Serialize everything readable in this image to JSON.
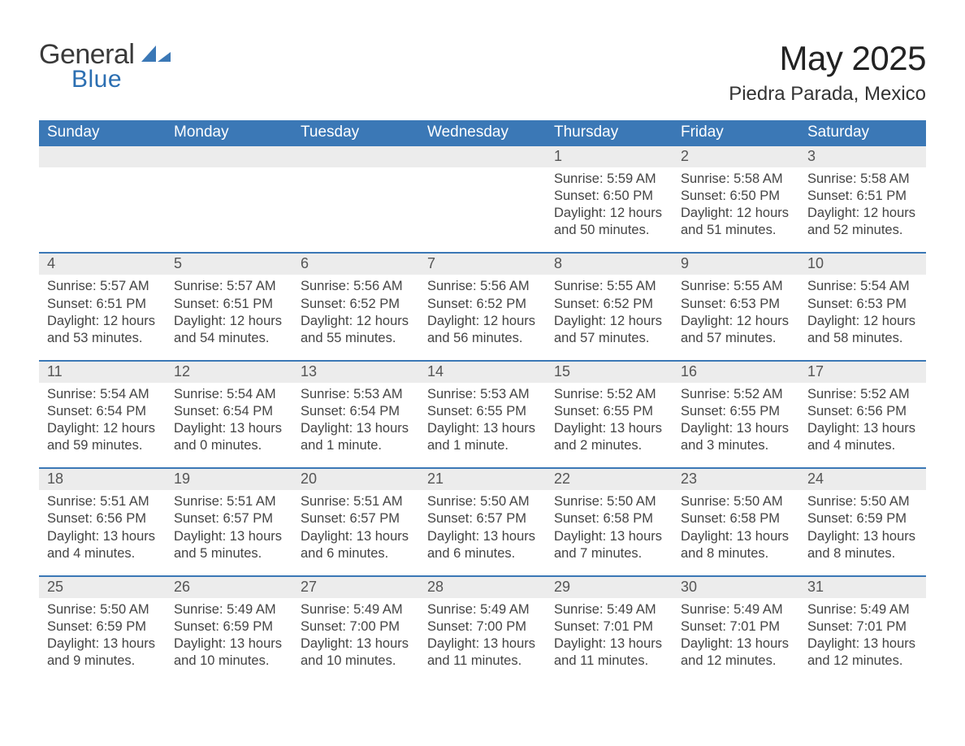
{
  "logo": {
    "word1": "General",
    "word2": "Blue",
    "sail_color": "#3b78b6"
  },
  "title": "May 2025",
  "subtitle": "Piedra Parada, Mexico",
  "colors": {
    "header_bg": "#3b78b6",
    "row_separator": "#3b78b6",
    "daynum_bg": "#ececec",
    "page_bg": "#ffffff",
    "text": "#333333",
    "logo_blue": "#2c6fb2"
  },
  "weekdays": [
    "Sunday",
    "Monday",
    "Tuesday",
    "Wednesday",
    "Thursday",
    "Friday",
    "Saturday"
  ],
  "label_sunrise": "Sunrise: ",
  "label_sunset": "Sunset: ",
  "label_daylight": "Daylight: ",
  "weeks": [
    [
      null,
      null,
      null,
      null,
      {
        "d": "1",
        "sunrise": "5:59 AM",
        "sunset": "6:50 PM",
        "daylight": "12 hours and 50 minutes."
      },
      {
        "d": "2",
        "sunrise": "5:58 AM",
        "sunset": "6:50 PM",
        "daylight": "12 hours and 51 minutes."
      },
      {
        "d": "3",
        "sunrise": "5:58 AM",
        "sunset": "6:51 PM",
        "daylight": "12 hours and 52 minutes."
      }
    ],
    [
      {
        "d": "4",
        "sunrise": "5:57 AM",
        "sunset": "6:51 PM",
        "daylight": "12 hours and 53 minutes."
      },
      {
        "d": "5",
        "sunrise": "5:57 AM",
        "sunset": "6:51 PM",
        "daylight": "12 hours and 54 minutes."
      },
      {
        "d": "6",
        "sunrise": "5:56 AM",
        "sunset": "6:52 PM",
        "daylight": "12 hours and 55 minutes."
      },
      {
        "d": "7",
        "sunrise": "5:56 AM",
        "sunset": "6:52 PM",
        "daylight": "12 hours and 56 minutes."
      },
      {
        "d": "8",
        "sunrise": "5:55 AM",
        "sunset": "6:52 PM",
        "daylight": "12 hours and 57 minutes."
      },
      {
        "d": "9",
        "sunrise": "5:55 AM",
        "sunset": "6:53 PM",
        "daylight": "12 hours and 57 minutes."
      },
      {
        "d": "10",
        "sunrise": "5:54 AM",
        "sunset": "6:53 PM",
        "daylight": "12 hours and 58 minutes."
      }
    ],
    [
      {
        "d": "11",
        "sunrise": "5:54 AM",
        "sunset": "6:54 PM",
        "daylight": "12 hours and 59 minutes."
      },
      {
        "d": "12",
        "sunrise": "5:54 AM",
        "sunset": "6:54 PM",
        "daylight": "13 hours and 0 minutes."
      },
      {
        "d": "13",
        "sunrise": "5:53 AM",
        "sunset": "6:54 PM",
        "daylight": "13 hours and 1 minute."
      },
      {
        "d": "14",
        "sunrise": "5:53 AM",
        "sunset": "6:55 PM",
        "daylight": "13 hours and 1 minute."
      },
      {
        "d": "15",
        "sunrise": "5:52 AM",
        "sunset": "6:55 PM",
        "daylight": "13 hours and 2 minutes."
      },
      {
        "d": "16",
        "sunrise": "5:52 AM",
        "sunset": "6:55 PM",
        "daylight": "13 hours and 3 minutes."
      },
      {
        "d": "17",
        "sunrise": "5:52 AM",
        "sunset": "6:56 PM",
        "daylight": "13 hours and 4 minutes."
      }
    ],
    [
      {
        "d": "18",
        "sunrise": "5:51 AM",
        "sunset": "6:56 PM",
        "daylight": "13 hours and 4 minutes."
      },
      {
        "d": "19",
        "sunrise": "5:51 AM",
        "sunset": "6:57 PM",
        "daylight": "13 hours and 5 minutes."
      },
      {
        "d": "20",
        "sunrise": "5:51 AM",
        "sunset": "6:57 PM",
        "daylight": "13 hours and 6 minutes."
      },
      {
        "d": "21",
        "sunrise": "5:50 AM",
        "sunset": "6:57 PM",
        "daylight": "13 hours and 6 minutes."
      },
      {
        "d": "22",
        "sunrise": "5:50 AM",
        "sunset": "6:58 PM",
        "daylight": "13 hours and 7 minutes."
      },
      {
        "d": "23",
        "sunrise": "5:50 AM",
        "sunset": "6:58 PM",
        "daylight": "13 hours and 8 minutes."
      },
      {
        "d": "24",
        "sunrise": "5:50 AM",
        "sunset": "6:59 PM",
        "daylight": "13 hours and 8 minutes."
      }
    ],
    [
      {
        "d": "25",
        "sunrise": "5:50 AM",
        "sunset": "6:59 PM",
        "daylight": "13 hours and 9 minutes."
      },
      {
        "d": "26",
        "sunrise": "5:49 AM",
        "sunset": "6:59 PM",
        "daylight": "13 hours and 10 minutes."
      },
      {
        "d": "27",
        "sunrise": "5:49 AM",
        "sunset": "7:00 PM",
        "daylight": "13 hours and 10 minutes."
      },
      {
        "d": "28",
        "sunrise": "5:49 AM",
        "sunset": "7:00 PM",
        "daylight": "13 hours and 11 minutes."
      },
      {
        "d": "29",
        "sunrise": "5:49 AM",
        "sunset": "7:01 PM",
        "daylight": "13 hours and 11 minutes."
      },
      {
        "d": "30",
        "sunrise": "5:49 AM",
        "sunset": "7:01 PM",
        "daylight": "13 hours and 12 minutes."
      },
      {
        "d": "31",
        "sunrise": "5:49 AM",
        "sunset": "7:01 PM",
        "daylight": "13 hours and 12 minutes."
      }
    ]
  ]
}
